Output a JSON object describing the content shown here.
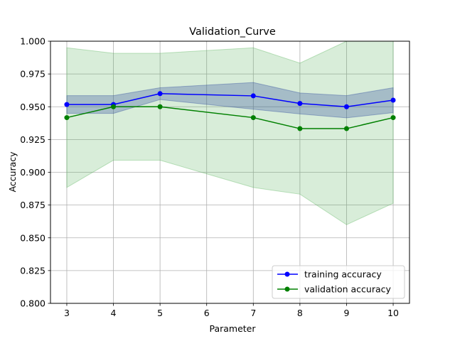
{
  "chart_data": {
    "type": "line",
    "title": "Validation_Curve",
    "xlabel": "Parameter",
    "ylabel": "Accuracy",
    "x": [
      3,
      4,
      5,
      7,
      8,
      9,
      10
    ],
    "xticks": [
      3,
      4,
      5,
      6,
      7,
      8,
      9,
      10
    ],
    "xlim": [
      2.65,
      10.35
    ],
    "yticks": [
      0.8,
      0.825,
      0.85,
      0.875,
      0.9,
      0.925,
      0.95,
      0.975,
      1.0
    ],
    "ytick_labels": [
      "0.800",
      "0.825",
      "0.850",
      "0.875",
      "0.900",
      "0.925",
      "0.950",
      "0.975",
      "1.000"
    ],
    "ylim": [
      0.8,
      1.0
    ],
    "grid": true,
    "legend_position": "lower-right",
    "series": [
      {
        "name": "training accuracy",
        "color": "#0000ff",
        "band_color": "#1f3d99",
        "values": [
          0.9517,
          0.9517,
          0.96,
          0.9583,
          0.9525,
          0.95,
          0.955
        ],
        "upper": [
          0.9585,
          0.9585,
          0.9645,
          0.9685,
          0.9605,
          0.9585,
          0.9645
        ],
        "lower": [
          0.9449,
          0.9449,
          0.9555,
          0.9481,
          0.9445,
          0.9415,
          0.9455
        ]
      },
      {
        "name": "validation accuracy",
        "color": "#008000",
        "band_color": "#4caf50",
        "values": [
          0.9417,
          0.95,
          0.95,
          0.9417,
          0.9333,
          0.9333,
          0.9417
        ],
        "upper": [
          0.995,
          0.9908,
          0.9908,
          0.995,
          0.9833,
          1.007,
          1.007
        ],
        "lower": [
          0.8884,
          0.9092,
          0.9092,
          0.8884,
          0.8833,
          0.86,
          0.8764
        ]
      }
    ]
  }
}
